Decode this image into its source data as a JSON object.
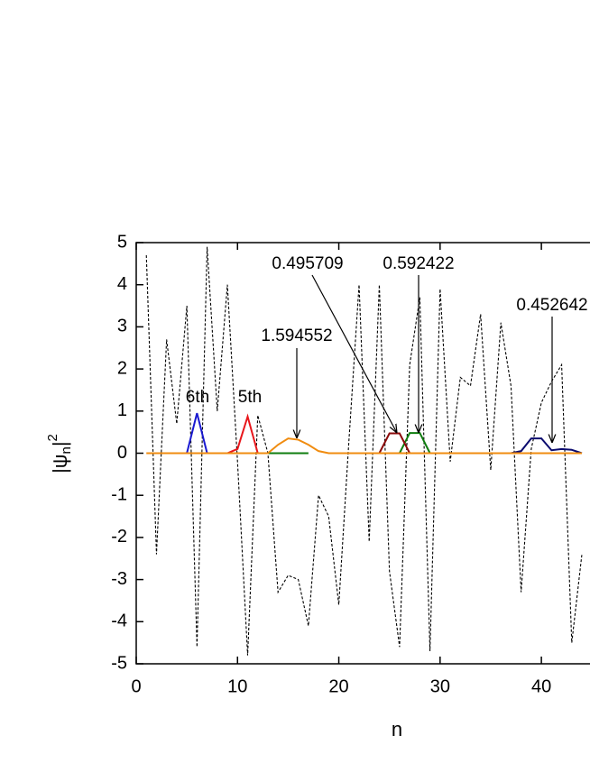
{
  "chart_data": {
    "type": "line",
    "xlabel": "n",
    "ylabel": [
      "|ψ",
      "n",
      "|",
      "2"
    ],
    "xlim": [
      0,
      44.8
    ],
    "ylim": [
      -5,
      5
    ],
    "xticks": [
      0,
      10,
      20,
      30,
      40
    ],
    "yticks": [
      -5,
      -4,
      -3,
      -2,
      -1,
      0,
      1,
      2,
      3,
      4,
      5
    ],
    "x": [
      1,
      2,
      3,
      4,
      5,
      6,
      7,
      8,
      9,
      10,
      11,
      12,
      13,
      14,
      15,
      16,
      17,
      18,
      19,
      20,
      21,
      22,
      23,
      24,
      25,
      26,
      27,
      28,
      29,
      30,
      31,
      32,
      33,
      34,
      35,
      36,
      37,
      38,
      39,
      40,
      41,
      42,
      43,
      44
    ],
    "series": [
      {
        "color": "#000000",
        "dash": true,
        "values": [
          4.7,
          -2.4,
          2.7,
          0.7,
          3.5,
          -4.6,
          4.9,
          1.0,
          4.0,
          -0.2,
          -4.8,
          0.9,
          0.0,
          -3.3,
          -2.9,
          -3.0,
          -4.1,
          -1.0,
          -1.5,
          -3.6,
          0.3,
          4.0,
          -2.1,
          4.0,
          -2.8,
          -4.6,
          2.1,
          3.7,
          -4.7,
          3.9,
          -0.2,
          1.8,
          1.6,
          3.3,
          -0.4,
          3.1,
          1.6,
          -3.3,
          0.1,
          1.2,
          1.7,
          2.1,
          -4.5,
          -2.4
        ]
      },
      {
        "color": "#1a1ad0",
        "values": [
          null,
          null,
          null,
          null,
          0,
          0.95,
          0,
          null,
          null,
          null,
          null,
          null,
          null,
          null,
          null,
          null,
          null,
          null,
          null,
          null,
          null,
          null,
          null,
          null,
          null,
          null,
          null,
          null,
          null,
          null,
          null,
          null,
          null,
          null,
          null,
          null,
          null,
          null,
          null,
          null,
          null,
          null,
          null,
          null
        ]
      },
      {
        "color": "#e8161b",
        "values": [
          null,
          null,
          null,
          null,
          null,
          null,
          null,
          null,
          0,
          0.1,
          0.87,
          0,
          null,
          null,
          null,
          null,
          null,
          null,
          null,
          null,
          null,
          null,
          null,
          null,
          null,
          null,
          null,
          null,
          null,
          null,
          null,
          null,
          null,
          null,
          null,
          null,
          null,
          null,
          null,
          null,
          null,
          null,
          null,
          null
        ]
      },
      {
        "color": "#0f7d0f",
        "values": [
          null,
          null,
          null,
          null,
          null,
          null,
          null,
          null,
          null,
          null,
          null,
          null,
          0,
          0,
          0,
          0,
          0,
          null,
          null,
          null,
          null,
          null,
          null,
          null,
          null,
          0,
          0.48,
          0.48,
          0,
          null,
          null,
          null,
          null,
          null,
          null,
          null,
          null,
          null,
          null,
          null,
          null,
          null,
          null,
          null
        ]
      },
      {
        "color": "#8b0a0a",
        "values": [
          null,
          null,
          null,
          null,
          null,
          null,
          null,
          null,
          null,
          null,
          null,
          null,
          null,
          null,
          null,
          null,
          null,
          null,
          null,
          null,
          null,
          null,
          null,
          0,
          0.47,
          0.47,
          0,
          null,
          null,
          null,
          null,
          null,
          null,
          null,
          null,
          null,
          null,
          null,
          null,
          null,
          null,
          null,
          null,
          null
        ]
      },
      {
        "color": "#0b0b6e",
        "values": [
          null,
          null,
          null,
          null,
          null,
          null,
          null,
          null,
          null,
          null,
          null,
          null,
          null,
          null,
          null,
          null,
          null,
          null,
          null,
          null,
          null,
          null,
          null,
          null,
          null,
          null,
          null,
          null,
          null,
          null,
          null,
          null,
          null,
          null,
          null,
          null,
          0,
          0.05,
          0.35,
          0.35,
          0.07,
          0.1,
          0.08,
          0
        ]
      },
      {
        "color": "#f08c10",
        "values": [
          0,
          0,
          0,
          0,
          0,
          0,
          0,
          0,
          0,
          0,
          0,
          0,
          0,
          0.2,
          0.35,
          0.32,
          0.2,
          0.05,
          0,
          0,
          0,
          0,
          0,
          0,
          0,
          0,
          0,
          0,
          0,
          0,
          0,
          0,
          0,
          0,
          0,
          0,
          0,
          0,
          0,
          0,
          0,
          0,
          0,
          0
        ]
      }
    ],
    "annotations": [
      "6th",
      "5th",
      "1.594552",
      "0.495709",
      "0.592422",
      "0.452642"
    ]
  }
}
